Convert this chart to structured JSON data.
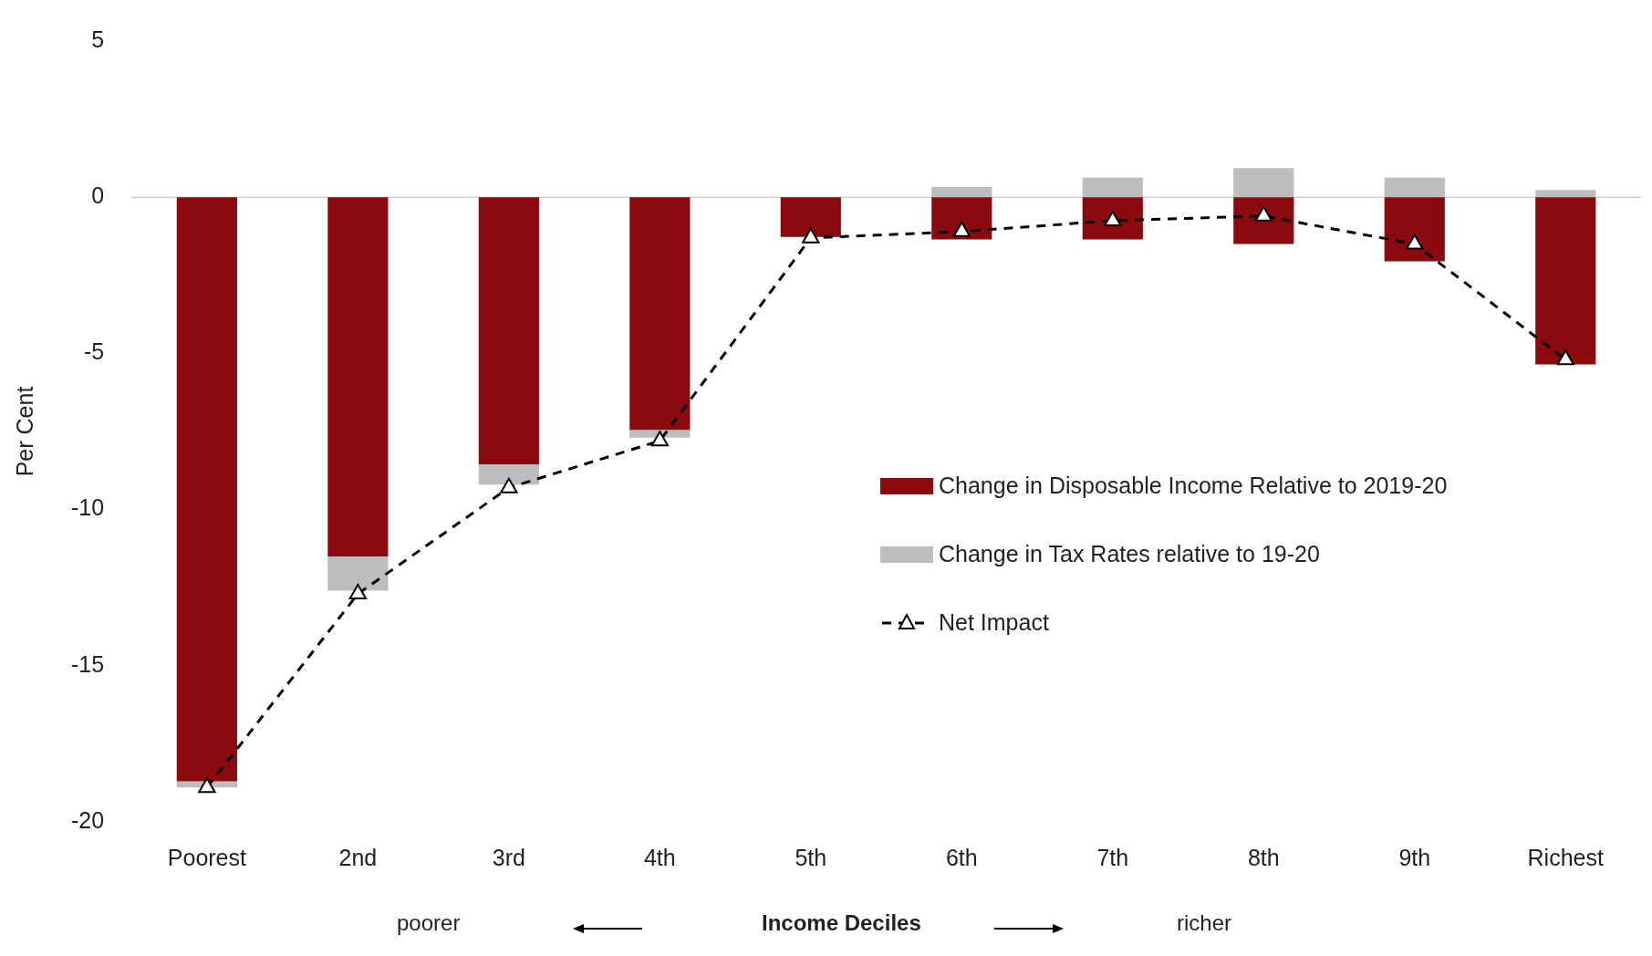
{
  "chart_data": {
    "type": "bar",
    "stacked": true,
    "xlabel": "Income Deciles",
    "ylabel": "Per Cent",
    "categories": [
      "Poorest",
      "2nd",
      "3rd",
      "4th",
      "5th",
      "6th",
      "7th",
      "8th",
      "9th",
      "Richest"
    ],
    "series": [
      {
        "name": "Change in Disposable Income Relative to 2019-20",
        "color": "#8b0a0f",
        "values": [
          -18.7,
          -11.5,
          -8.55,
          -7.45,
          -1.27,
          -1.35,
          -1.35,
          -1.5,
          -2.05,
          -5.35
        ]
      },
      {
        "name": "Change in Tax Rates relative to 19-20",
        "color": "#bdbdbd",
        "values": [
          -0.2,
          -1.1,
          -0.65,
          -0.25,
          0,
          0.33,
          0.63,
          0.93,
          0.63,
          0.23
        ]
      },
      {
        "name": "Net Impact",
        "type": "line",
        "color": "#000000",
        "marker": "triangle",
        "line_style": "dashed",
        "values": [
          -18.9,
          -12.7,
          -9.3,
          -7.8,
          -1.3,
          -1.1,
          -0.75,
          -0.6,
          -1.5,
          -5.2
        ]
      }
    ],
    "ylim": [
      -20,
      5
    ],
    "yticks": [
      -20,
      -15,
      -10,
      -5,
      0,
      5
    ],
    "ref_lines": [
      {
        "axis": "y",
        "value": 0,
        "color": "#d0d0d0"
      }
    ],
    "legend": "right",
    "annotations": [
      "poorer",
      "richer"
    ]
  }
}
